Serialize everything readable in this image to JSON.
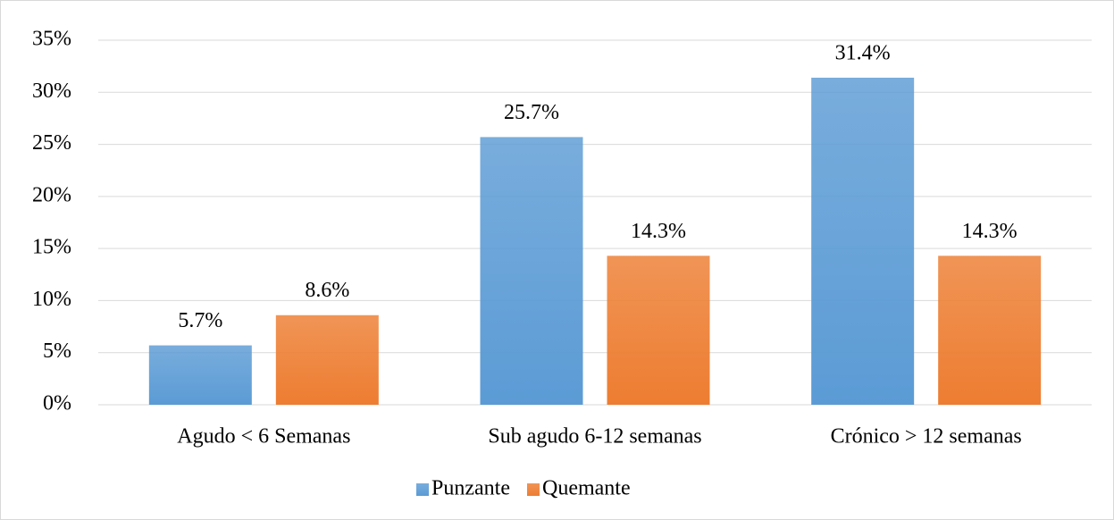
{
  "chart_data": {
    "type": "bar",
    "categories": [
      "Agudo < 6 Semanas",
      "Sub agudo 6-12 semanas",
      "Crónico > 12 semanas"
    ],
    "series": [
      {
        "name": "Punzante",
        "color": "#5b9bd5",
        "values": [
          5.7,
          25.7,
          31.4
        ],
        "value_labels": [
          "5.7%",
          "25.7%",
          "31.4%"
        ]
      },
      {
        "name": "Quemante",
        "color": "#ed7d31",
        "values": [
          8.6,
          14.3,
          14.3
        ],
        "value_labels": [
          "8.6%",
          "14.3%",
          "14.3%"
        ]
      }
    ],
    "ylim": [
      0,
      35
    ],
    "yticks": [
      {
        "value": 0,
        "label": "0%"
      },
      {
        "value": 5,
        "label": "5%"
      },
      {
        "value": 10,
        "label": "10%"
      },
      {
        "value": 15,
        "label": "15%"
      },
      {
        "value": 20,
        "label": "20%"
      },
      {
        "value": 25,
        "label": "25%"
      },
      {
        "value": 30,
        "label": "30%"
      },
      {
        "value": 35,
        "label": "35%"
      }
    ],
    "grid": true,
    "legend": "bottom"
  }
}
